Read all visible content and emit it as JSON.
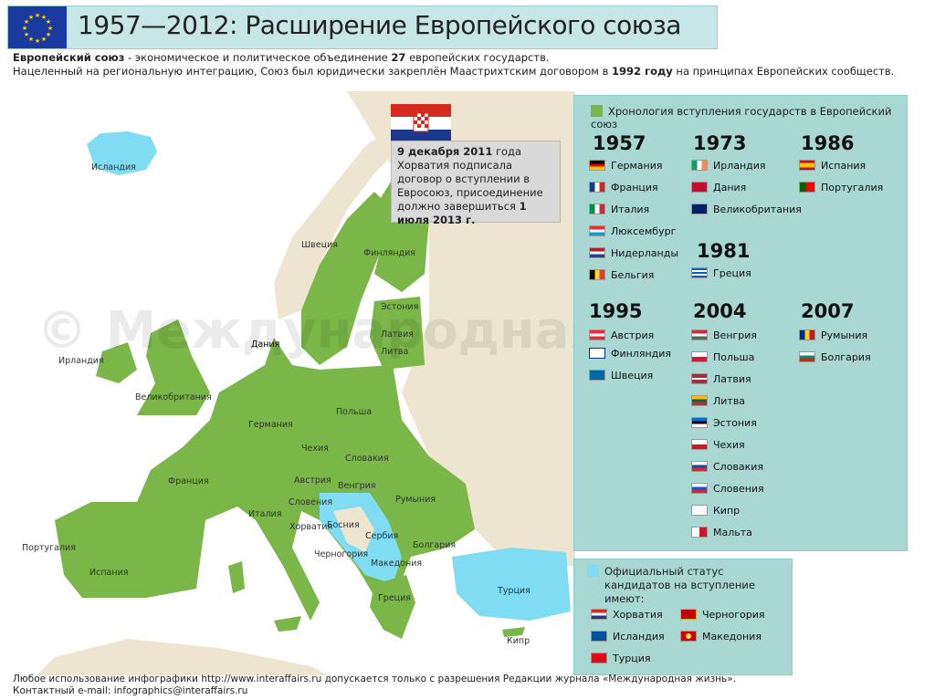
{
  "header": {
    "title": "1957—2012: Расширение Европейского союза"
  },
  "intro": {
    "line1_bold": "Европейский союз",
    "line1_rest": " - экономическое и политическое объединение ",
    "line1_num": "27",
    "line1_end": " европейских государств.",
    "line2_start": "Нацеленный на региональную интеграцию, Союз был юридически закреплён Маастрихтским договором в ",
    "line2_bold": "1992 году",
    "line2_end": " на принципах Европейских сообществ."
  },
  "croatia_note": {
    "date_bold": "9 декабря 2011",
    "text1": " года Хорватия подписала договор о вступлении в Евросоюз, присоединение должно завершиться ",
    "date2_bold": "1 июля 2013 г."
  },
  "legend": {
    "heading": "Хронология вступления государств в Европейский союз",
    "groups": [
      {
        "year": "1957",
        "countries": [
          "Германия",
          "Франция",
          "Италия",
          "Люксембург",
          "Нидерланды",
          "Бельгия"
        ]
      },
      {
        "year": "1973",
        "countries": [
          "Ирландия",
          "Дания",
          "Великобритания"
        ]
      },
      {
        "year": "1986",
        "countries": [
          "Испания",
          "Португалия"
        ]
      },
      {
        "year": "1981",
        "countries": [
          "Греция"
        ]
      },
      {
        "year": "1995",
        "countries": [
          "Австрия",
          "Финляндия",
          "Швеция"
        ]
      },
      {
        "year": "2004",
        "countries": [
          "Венгрия",
          "Польша",
          "Латвия",
          "Литва",
          "Эстония",
          "Чехия",
          "Словакия",
          "Словения",
          "Кипр",
          "Мальта"
        ]
      },
      {
        "year": "2007",
        "countries": [
          "Румыния",
          "Болгария"
        ]
      }
    ]
  },
  "candidates": {
    "heading_line1": "Официальный статус",
    "heading_line2": "кандидатов на вступление имеют:",
    "left": [
      "Хорватия",
      "Исландия",
      "Турция"
    ],
    "right": [
      "Черногория",
      "Македония"
    ]
  },
  "map_labels": {
    "iceland": "Исландия",
    "ireland": "Ирландия",
    "uk": "Великобритания",
    "denmark": "Дания",
    "sweden": "Швеция",
    "finland": "Финляндия",
    "estonia": "Эстония",
    "latvia": "Латвия",
    "lithuania": "Литва",
    "poland": "Польша",
    "germany": "Германия",
    "czech": "Чехия",
    "slovakia": "Словакия",
    "austria": "Австрия",
    "hungary": "Венгрия",
    "france": "Франция",
    "slovenia": "Словения",
    "croatia": "Хорватия",
    "bosnia": "Босния",
    "serbia": "Сербия",
    "montenegro": "Черногория",
    "macedonia": "Македония",
    "romania": "Румыния",
    "bulgaria": "Болгария",
    "italy": "Италия",
    "spain": "Испания",
    "portugal": "Португалия",
    "greece": "Греция",
    "turkey": "Турция",
    "cyprus": "Кипр"
  },
  "watermark": "© Международная жизнь",
  "footer": {
    "line1": "Любое использование инфографики http://www.interaffairs.ru допускается только с разрешения Редакции журнала «Международная жизнь».",
    "line2": "Контактный e-mail: infographics@interaffairs.ru"
  },
  "colors": {
    "eu_green": "#7ab648",
    "candidate_blue": "#7fdcf2",
    "non_eu": "#ede5cf",
    "sea": "#ffffff",
    "legend_bg": "#a9d7d2"
  }
}
